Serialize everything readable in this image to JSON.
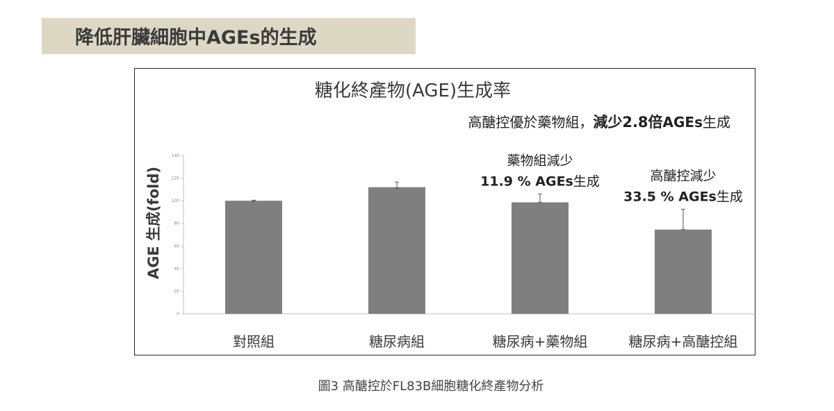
{
  "header": {
    "title": "降低肝臟細胞中AGEs的生成"
  },
  "caption": "圖3 高醣控於FL83B細胞糖化終產物分析",
  "colors": {
    "bar": "#7f7f7f",
    "header_band": "#ddd8c4",
    "axis": "#bfbfbf"
  },
  "chart_data": {
    "type": "bar",
    "title": "糖化終產物(AGE)生成率",
    "subtitle_normal": "高醣控優於藥物組，",
    "subtitle_bold": "減少2.8倍",
    "subtitle_tail_bold": "AGEs",
    "subtitle_tail": "生成",
    "ylabel": "AGE 生成(fold)",
    "xlabel": "",
    "ylim": [
      0,
      140
    ],
    "yticks": [
      "0",
      "20",
      "40",
      "60",
      "80",
      "100",
      "120",
      "140"
    ],
    "categories": [
      "對照組",
      "糖尿病組",
      "糖尿病+藥物組",
      "糖尿病+高醣控組"
    ],
    "values": [
      100,
      112,
      98.6,
      74.5
    ],
    "error_upper": [
      100.5,
      116.5,
      106,
      92.5
    ],
    "error_lower": [
      99.5,
      111,
      98.6,
      74.5
    ],
    "annotations": [
      {
        "category": "糖尿病+藥物組",
        "line1": "藥物組減少",
        "line2_bold": "11.9 % AGEs",
        "line2_tail": "生成"
      },
      {
        "category": "糖尿病+高醣控組",
        "line1": "高醣控減少",
        "line2_bold": "33.5 % AGEs",
        "line2_tail": "生成"
      }
    ],
    "grid": false,
    "legend": "none"
  }
}
